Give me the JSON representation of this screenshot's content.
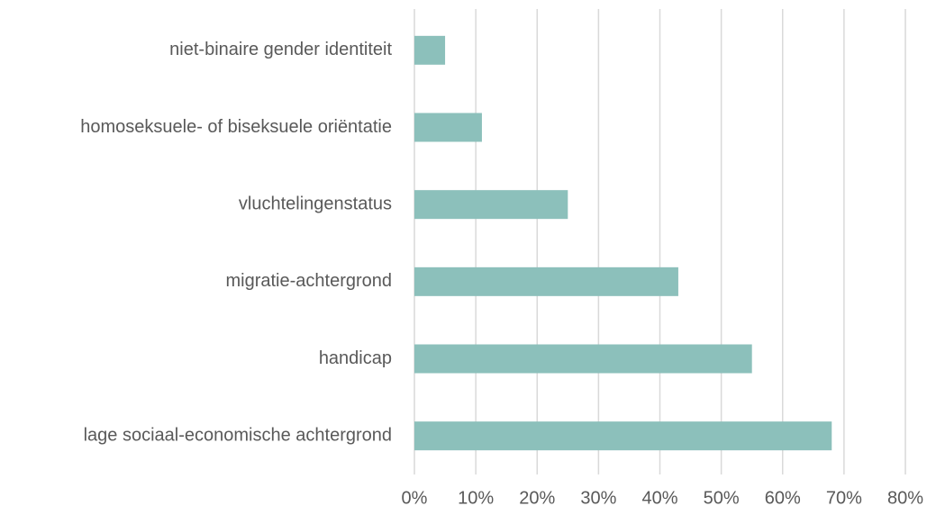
{
  "chart_data": {
    "type": "barh",
    "categories": [
      "niet-binaire gender identiteit",
      "homoseksuele- of biseksuele oriëntatie",
      "vluchtelingenstatus",
      "migratie-achtergrond",
      "handicap",
      "lage sociaal-economische achtergrond"
    ],
    "values": [
      5,
      11,
      25,
      43,
      55,
      68
    ],
    "color": "#8cc0bb",
    "xlim": [
      0,
      80
    ],
    "xticks": [
      {
        "value": 0,
        "label": "0%"
      },
      {
        "value": 10,
        "label": "10%"
      },
      {
        "value": 20,
        "label": "20%"
      },
      {
        "value": 30,
        "label": "30%"
      },
      {
        "value": 40,
        "label": "40%"
      },
      {
        "value": 50,
        "label": "50%"
      },
      {
        "value": 60,
        "label": "60%"
      },
      {
        "value": 70,
        "label": "70%"
      },
      {
        "value": 80,
        "label": "80%"
      }
    ],
    "grid": true
  }
}
